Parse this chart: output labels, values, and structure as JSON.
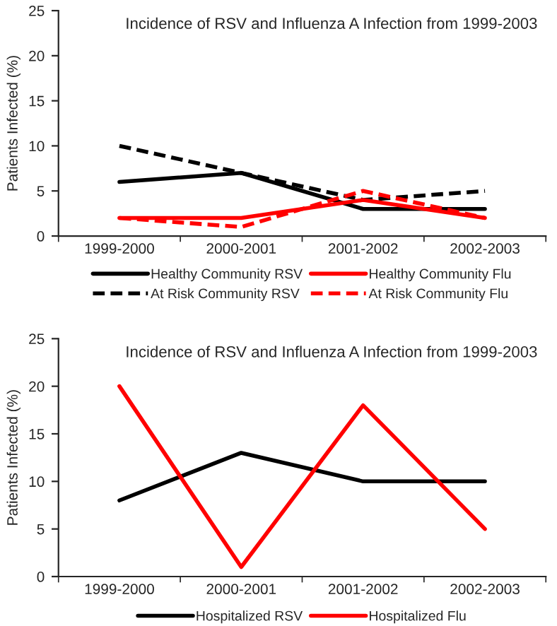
{
  "chart_data": [
    {
      "type": "line",
      "title": "Incidence of RSV and Influenza A Infection from 1999-2003",
      "ylabel": "Patients Infected (%)",
      "categories": [
        "1999-2000",
        "2000-2001",
        "2001-2002",
        "2002-2003"
      ],
      "ylim": [
        0,
        25
      ],
      "yticks": [
        0,
        5,
        10,
        15,
        20,
        25
      ],
      "grid": false,
      "legend": "bottom",
      "marker": "none",
      "series": [
        {
          "name": "Healthy Community RSV",
          "color": "#000000",
          "line_style": "solid",
          "values": [
            6,
            7,
            3,
            3
          ]
        },
        {
          "name": "At Risk Community RSV",
          "color": "#000000",
          "line_style": "dashed",
          "values": [
            10,
            7,
            4,
            5
          ]
        },
        {
          "name": "Healthy Community Flu",
          "color": "#ff0000",
          "line_style": "solid",
          "values": [
            2,
            2,
            4,
            2
          ]
        },
        {
          "name": "At Risk Community Flu",
          "color": "#ff0000",
          "line_style": "dashed",
          "values": [
            2,
            1,
            5,
            2
          ]
        }
      ]
    },
    {
      "type": "line",
      "title": "Incidence of RSV and Influenza A Infection from 1999-2003",
      "ylabel": "Patients Infected (%)",
      "categories": [
        "1999-2000",
        "2000-2001",
        "2001-2002",
        "2002-2003"
      ],
      "ylim": [
        0,
        25
      ],
      "yticks": [
        0,
        5,
        10,
        15,
        20,
        25
      ],
      "grid": false,
      "legend": "bottom",
      "marker": "none",
      "series": [
        {
          "name": "Hospitalized RSV",
          "color": "#000000",
          "line_style": "solid",
          "values": [
            8,
            13,
            10,
            10
          ]
        },
        {
          "name": "Hospitalized Flu",
          "color": "#ff0000",
          "line_style": "solid",
          "values": [
            20,
            1,
            18,
            5
          ]
        }
      ]
    }
  ]
}
